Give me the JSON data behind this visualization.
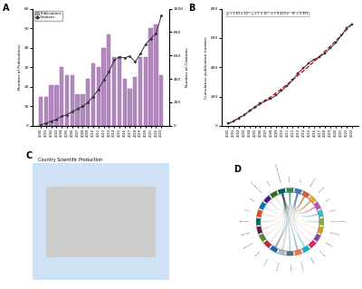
{
  "years": [
    2000,
    2001,
    2002,
    2003,
    2004,
    2005,
    2006,
    2007,
    2008,
    2009,
    2010,
    2011,
    2012,
    2013,
    2014,
    2015,
    2016,
    2017,
    2018,
    2019,
    2020,
    2021,
    2022,
    2023
  ],
  "publications": [
    15,
    15,
    21,
    21,
    30,
    26,
    26,
    16,
    16,
    24,
    32,
    30,
    40,
    47,
    35,
    35,
    24,
    19,
    25,
    35,
    35,
    50,
    52,
    26
  ],
  "citations": [
    10,
    20,
    40,
    55,
    80,
    95,
    120,
    145,
    165,
    200,
    250,
    310,
    390,
    460,
    560,
    590,
    580,
    595,
    545,
    615,
    695,
    745,
    790,
    940
  ],
  "cumulative_pubs": [
    15,
    30,
    51,
    72,
    102,
    128,
    154,
    170,
    186,
    210,
    242,
    272,
    312,
    359,
    394,
    429,
    453,
    472,
    497,
    532,
    567,
    617,
    669,
    695
  ],
  "bar_color": "#b08abd",
  "bar_edge_color": "#9a6aad",
  "line_color": "#333333",
  "cum_line_color": "#333333",
  "fit_line_color": "#cc0000",
  "equation_text": "y = 1.69 × 10⁻² − 1.7 × 10⁻¹ x + 0.429 x²   R² = 0.997",
  "pub_ylabel": "Number of Publications",
  "cit_ylabel": "Number of Citations",
  "cum_ylabel": "Cumulative publication number",
  "pub_ylim": [
    0,
    60
  ],
  "pub_yticks": [
    0,
    10,
    20,
    30,
    40,
    50,
    60
  ],
  "cit_ylim": [
    0,
    1000
  ],
  "cit_yticks": [
    0,
    200,
    400,
    600,
    800,
    1000
  ],
  "cum_ylim": [
    0,
    800
  ],
  "cum_yticks": [
    0,
    200,
    400,
    600,
    800
  ],
  "map_title": "Country Scientific Production",
  "map_color_very_high": "#1a3f7a",
  "map_color_high": "#2b6cb0",
  "map_color_med": "#6aaed6",
  "map_color_low": "#b8d7ed",
  "map_color_none": "#cccccc",
  "map_water": "#cfe2f3",
  "chord_countries": [
    "CHINA",
    "USA",
    "GERMANY",
    "FRANCE",
    "ITALY",
    "JAPAN",
    "SOUTH KOREA",
    "LEBANON",
    "NORWAY",
    "POLAND",
    "TURKEY",
    "AUSTRALIA",
    "AUSTRIA",
    "BELGIUM",
    "CANADA",
    "BRAZIL",
    "ARGENTINA",
    "FINLAND",
    "IRELAND",
    "INDIA",
    "IRAN",
    "NETHERLANDS",
    "SPAIN",
    "UNITED KINGDOM"
  ],
  "chord_colors": [
    "#2e8b57",
    "#3c7abf",
    "#e05c2a",
    "#f5a623",
    "#c44bc4",
    "#2ec4c4",
    "#7cb342",
    "#d4a017",
    "#8e44ad",
    "#e91e63",
    "#00bcd4",
    "#ff7043",
    "#546e7a",
    "#b0bec5",
    "#1565c0",
    "#c62828",
    "#558b2f",
    "#6a1550",
    "#00695c",
    "#e64a19",
    "#0277bd",
    "#4a148c",
    "#33691e",
    "#006064"
  ],
  "background_color": "#ffffff"
}
